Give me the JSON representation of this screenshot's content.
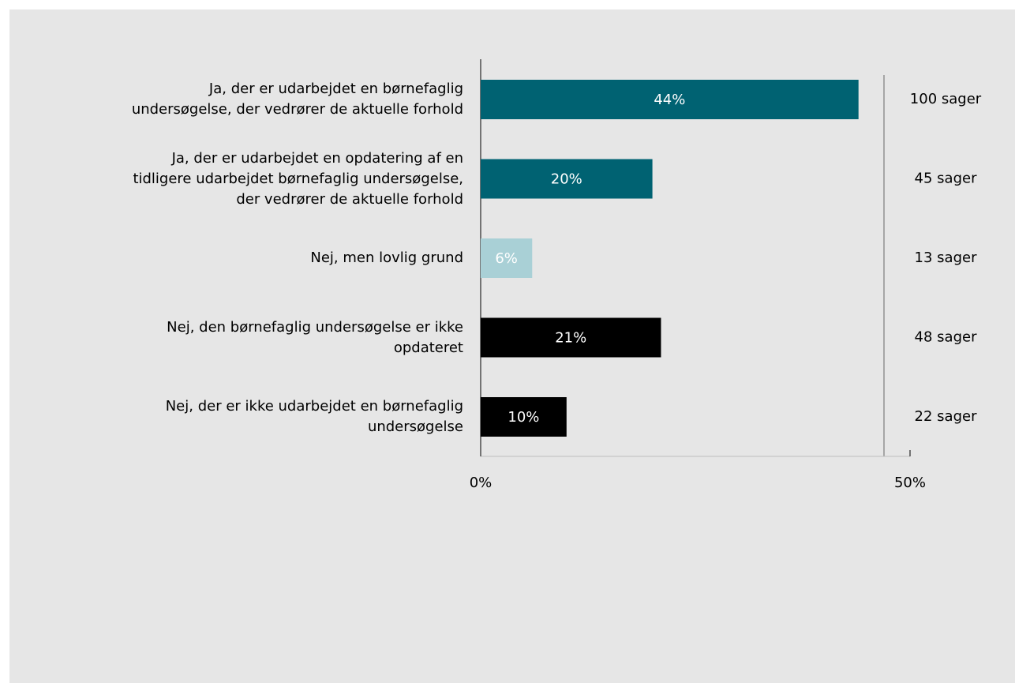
{
  "chart_data": {
    "type": "bar",
    "orientation": "horizontal",
    "categories": [
      "Ja, der er udarbejdet en børnefaglig\nundersøgelse, der vedrører de aktuelle forhold",
      "Ja, der er udarbejdet en opdatering af en\ntidligere udarbejdet børnefaglig undersøgelse,\nder vedrører de aktuelle forhold",
      "Nej, men lovlig grund",
      "Nej, den børnefaglig undersøgelse er ikke\nopdateret",
      "Nej, der er ikke udarbejdet en børnefaglig\nundersøgelse"
    ],
    "values": [
      44,
      20,
      6,
      21,
      10
    ],
    "value_labels": [
      "44%",
      "20%",
      "6%",
      "21%",
      "10%"
    ],
    "colors": [
      "#006272",
      "#006272",
      "#a9d0d6",
      "#000000",
      "#000000"
    ],
    "annotations": [
      "100 sager",
      "45 sager",
      "13 sager",
      "48 sager",
      "22 sager"
    ],
    "xlim": [
      0,
      50
    ],
    "xticks": [
      {
        "value": 0,
        "label": "0%"
      },
      {
        "value": 50,
        "label": "50%"
      }
    ]
  }
}
